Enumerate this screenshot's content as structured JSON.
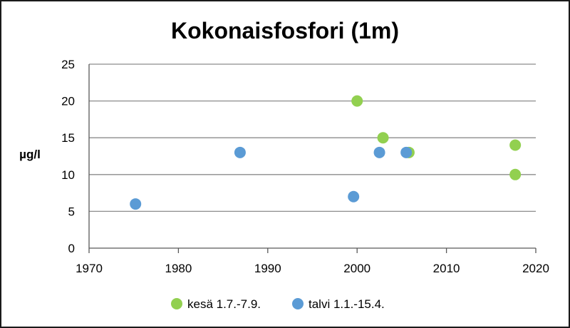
{
  "chart_data": {
    "type": "scatter",
    "title": "Kokonaisfosfori (1m)",
    "xlabel": "",
    "ylabel": "µg/l",
    "xlim": [
      1970,
      2020
    ],
    "ylim": [
      0,
      25
    ],
    "xticks": [
      "1970",
      "1980",
      "1990",
      "2000",
      "2010",
      "2020"
    ],
    "yticks": [
      "0",
      "5",
      "10",
      "15",
      "20",
      "25"
    ],
    "grid": true,
    "legend_position": "bottom",
    "series": [
      {
        "name": "kesä 1.7.-7.9.",
        "color": "#92d050",
        "points": [
          [
            2000.0,
            20
          ],
          [
            2002.9,
            15
          ],
          [
            2005.8,
            13
          ],
          [
            2017.7,
            14
          ],
          [
            2017.7,
            10
          ]
        ]
      },
      {
        "name": "talvi 1.1.-15.4.",
        "color": "#5b9bd5",
        "points": [
          [
            1975.2,
            6
          ],
          [
            1986.9,
            13
          ],
          [
            1999.6,
            7
          ],
          [
            2002.5,
            13
          ],
          [
            2005.5,
            13
          ]
        ]
      }
    ]
  }
}
